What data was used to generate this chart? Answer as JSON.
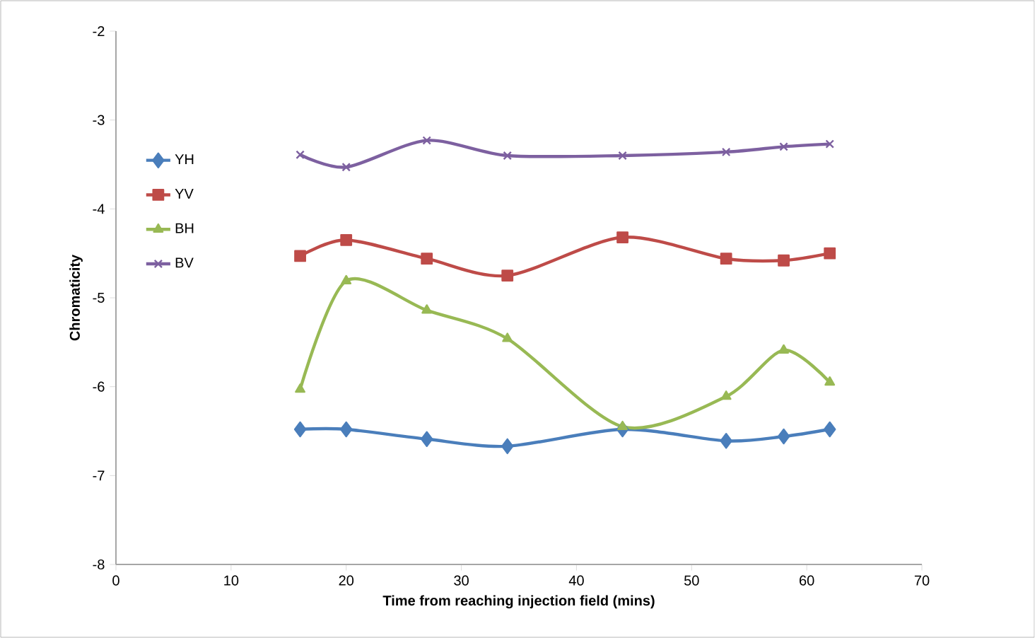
{
  "chart_data": {
    "type": "line",
    "xlabel": "Time from reaching injection field (mins)",
    "ylabel": "Chromaticity",
    "x": [
      16,
      20,
      27,
      34,
      44,
      53,
      58,
      62
    ],
    "xlim": [
      0,
      70
    ],
    "xticks": [
      0,
      10,
      20,
      30,
      40,
      50,
      60,
      70
    ],
    "ylim": [
      -8,
      -2
    ],
    "yticks": [
      -8,
      -7,
      -6,
      -5,
      -4,
      -3,
      -2
    ],
    "legend": "left",
    "grid": false,
    "series": [
      {
        "name": "YH",
        "color": "#4a7ebb",
        "marker": "diamond",
        "values": [
          -6.48,
          -6.48,
          -6.59,
          -6.67,
          -6.48,
          -6.61,
          -6.56,
          -6.48
        ]
      },
      {
        "name": "YV",
        "color": "#be4b48",
        "marker": "square",
        "values": [
          -4.53,
          -4.35,
          -4.56,
          -4.75,
          -4.32,
          -4.56,
          -4.58,
          -4.5
        ]
      },
      {
        "name": "BH",
        "color": "#98b954",
        "marker": "triangle",
        "values": [
          -6.03,
          -4.81,
          -5.14,
          -5.46,
          -6.45,
          -6.11,
          -5.59,
          -5.95
        ]
      },
      {
        "name": "BV",
        "color": "#7d60a0",
        "marker": "cross",
        "values": [
          -3.39,
          -3.53,
          -3.23,
          -3.4,
          -3.4,
          -3.36,
          -3.3,
          -3.27
        ]
      }
    ]
  }
}
